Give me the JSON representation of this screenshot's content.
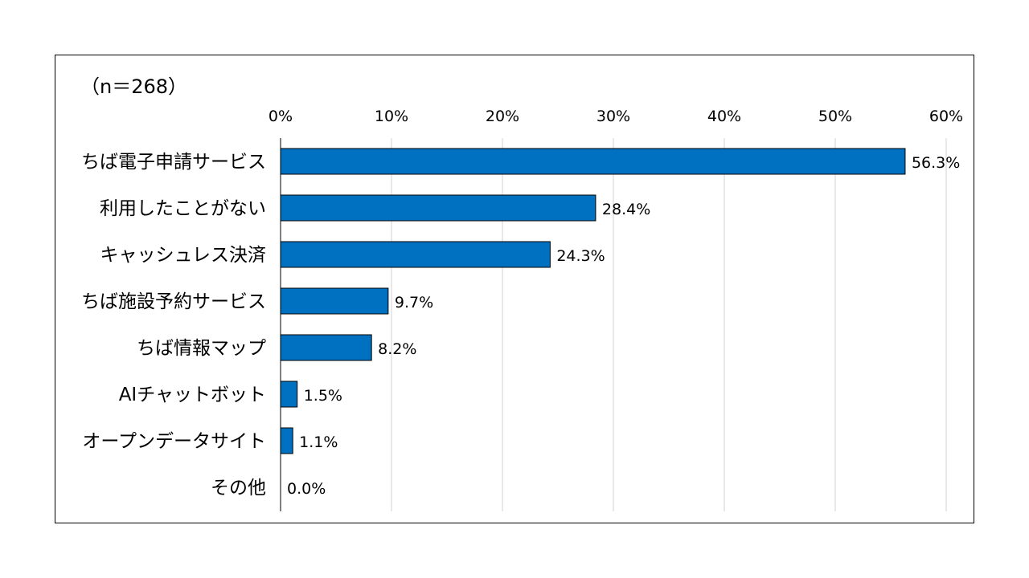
{
  "sample_size_label": "（n＝268）",
  "colors": {
    "bar": "#0070C0",
    "bar_stroke": "#000000",
    "grid": "#D0D0D0",
    "axis": "#000000"
  },
  "chart_data": {
    "type": "bar",
    "orientation": "horizontal",
    "categories": [
      "ちば電子申請サービス",
      "利用したことがない",
      "キャッシュレス決済",
      "ちば施設予約サービス",
      "ちば情報マップ",
      "AIチャットボット",
      "オープンデータサイト",
      "その他"
    ],
    "values": [
      56.3,
      28.4,
      24.3,
      9.7,
      8.2,
      1.5,
      1.1,
      0.0
    ],
    "value_labels": [
      "56.3%",
      "28.4%",
      "24.3%",
      "9.7%",
      "8.2%",
      "1.5%",
      "1.1%",
      "0.0%"
    ],
    "xlim": [
      0,
      60
    ],
    "x_ticks": [
      0,
      10,
      20,
      30,
      40,
      50,
      60
    ],
    "x_tick_labels": [
      "0%",
      "10%",
      "20%",
      "30%",
      "40%",
      "50%",
      "60%"
    ],
    "x_axis_position": "top",
    "grid": true,
    "legend": false
  }
}
